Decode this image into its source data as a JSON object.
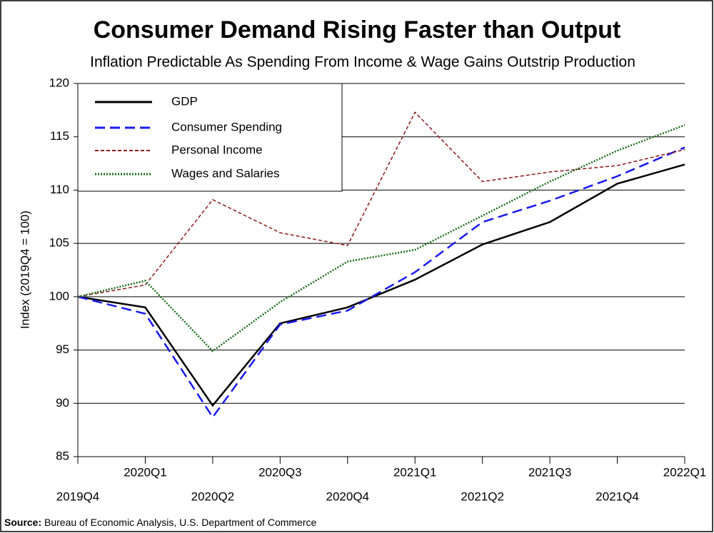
{
  "chart_data": {
    "type": "line",
    "title": "Consumer Demand Rising Faster than Output",
    "subtitle": "Inflation Predictable As Spending From Income & Wage Gains Outstrip Production",
    "y_label": "Index (2019Q4 = 100)",
    "source": {
      "label": "Source:",
      "text": "Bureau of Economic Analysis, U.S. Department of Commerce"
    },
    "categories": [
      "2019Q4",
      "2020Q1",
      "2020Q2",
      "2020Q3",
      "2020Q4",
      "2021Q1",
      "2021Q2",
      "2021Q3",
      "2021Q4",
      "2022Q1"
    ],
    "series": [
      {
        "name": "GDP",
        "color": "#000000",
        "dash": "none",
        "width": 2.5,
        "values": [
          100,
          99.0,
          89.8,
          97.5,
          99.0,
          101.6,
          104.9,
          107.0,
          110.6,
          112.4
        ]
      },
      {
        "name": "Consumer Spending",
        "color": "#1a1aee",
        "dash": "14,7",
        "width": 2.5,
        "values": [
          100,
          98.4,
          88.7,
          97.4,
          98.7,
          102.3,
          107.0,
          109.0,
          111.3,
          114.0
        ]
      },
      {
        "name": "Personal Income",
        "color": "#8b1a1a",
        "dash": "5,3",
        "width": 1.5,
        "values": [
          100,
          101.1,
          109.1,
          106.0,
          104.8,
          117.3,
          110.8,
          111.7,
          112.3,
          113.8
        ]
      },
      {
        "name": "Wages and Salaries",
        "color": "#1a6b1a",
        "dash": "2,2",
        "width": 2.5,
        "values": [
          100,
          101.5,
          94.9,
          99.5,
          103.3,
          104.4,
          107.6,
          110.8,
          113.7,
          116.1
        ]
      }
    ],
    "ylim": [
      85,
      120
    ],
    "yticks": [
      85,
      90,
      95,
      100,
      105,
      110,
      115,
      120
    ],
    "grid": true,
    "legend": "upper left"
  }
}
